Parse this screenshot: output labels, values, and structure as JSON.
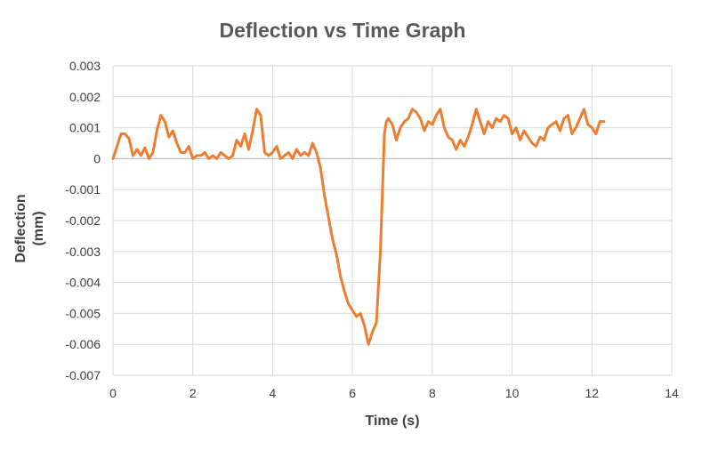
{
  "chart_data": {
    "type": "line",
    "title": "Deflection vs Time Graph",
    "xlabel": "Time (s)",
    "ylabel": "Deflection (mm)",
    "ylabel_lines": [
      "Deflection",
      "(mm)"
    ],
    "xlim": [
      0,
      14
    ],
    "ylim": [
      -0.007,
      0.003
    ],
    "x_ticks": [
      "0",
      "2",
      "4",
      "6",
      "8",
      "10",
      "12",
      "14"
    ],
    "y_ticks": [
      "0.003",
      "0.002",
      "0.001",
      "0",
      "-0.001",
      "-0.002",
      "-0.003",
      "-0.004",
      "-0.005",
      "-0.006",
      "-0.007"
    ],
    "grid": true,
    "legend": "none",
    "series": [
      {
        "color": "#ED7D31",
        "x": [
          0.0,
          0.1,
          0.2,
          0.3,
          0.4,
          0.5,
          0.6,
          0.7,
          0.8,
          0.9,
          1.0,
          1.1,
          1.2,
          1.3,
          1.4,
          1.5,
          1.6,
          1.7,
          1.8,
          1.9,
          2.0,
          2.1,
          2.2,
          2.3,
          2.4,
          2.5,
          2.6,
          2.7,
          2.8,
          2.9,
          3.0,
          3.1,
          3.2,
          3.3,
          3.4,
          3.5,
          3.6,
          3.7,
          3.8,
          3.9,
          4.0,
          4.1,
          4.2,
          4.3,
          4.4,
          4.5,
          4.6,
          4.7,
          4.8,
          4.9,
          5.0,
          5.1,
          5.2,
          5.3,
          5.4,
          5.5,
          5.6,
          5.7,
          5.8,
          5.9,
          6.0,
          6.1,
          6.2,
          6.3,
          6.4,
          6.5,
          6.6,
          6.7,
          6.8,
          6.85,
          6.9,
          7.0,
          7.1,
          7.2,
          7.3,
          7.4,
          7.5,
          7.6,
          7.7,
          7.8,
          7.9,
          8.0,
          8.1,
          8.2,
          8.3,
          8.4,
          8.5,
          8.6,
          8.7,
          8.8,
          8.9,
          9.0,
          9.1,
          9.2,
          9.3,
          9.4,
          9.5,
          9.6,
          9.7,
          9.8,
          9.9,
          10.0,
          10.1,
          10.2,
          10.3,
          10.4,
          10.5,
          10.6,
          10.7,
          10.8,
          10.9,
          11.0,
          11.1,
          11.2,
          11.3,
          11.4,
          11.5,
          11.6,
          11.7,
          11.8,
          11.9,
          12.0,
          12.1,
          12.2,
          12.3
        ],
        "y": [
          0.0,
          0.0004,
          0.0008,
          0.0008,
          0.00065,
          0.0001,
          0.0003,
          0.0001,
          0.00035,
          0.0,
          0.0002,
          0.0009,
          0.0014,
          0.0012,
          0.0007,
          0.0009,
          0.0005,
          0.0002,
          0.0002,
          0.0004,
          0.0,
          0.0001,
          0.0001,
          0.0002,
          0.0,
          0.0001,
          0.0,
          0.0002,
          0.0001,
          0.0,
          0.0001,
          0.0006,
          0.0004,
          0.0008,
          0.0003,
          0.0009,
          0.0016,
          0.0014,
          0.0002,
          0.0001,
          0.0002,
          0.0004,
          0.0,
          0.0001,
          0.0002,
          0.0,
          0.0003,
          0.0001,
          0.0002,
          0.0001,
          0.0005,
          0.0002,
          -0.0003,
          -0.0012,
          -0.0019,
          -0.0026,
          -0.0031,
          -0.0038,
          -0.0043,
          -0.0047,
          -0.0049,
          -0.0051,
          -0.005,
          -0.0054,
          -0.006,
          -0.0056,
          -0.0053,
          -0.003,
          0.0008,
          0.0012,
          0.0013,
          0.0011,
          0.0006,
          0.001,
          0.0012,
          0.0013,
          0.0016,
          0.0015,
          0.0013,
          0.0009,
          0.0012,
          0.0011,
          0.0014,
          0.0016,
          0.001,
          0.0007,
          0.0006,
          0.0003,
          0.0006,
          0.0004,
          0.0007,
          0.0011,
          0.0016,
          0.0012,
          0.0008,
          0.0012,
          0.001,
          0.0013,
          0.0012,
          0.0014,
          0.0013,
          0.0008,
          0.001,
          0.0006,
          0.0009,
          0.0007,
          0.0005,
          0.0004,
          0.0007,
          0.0006,
          0.001,
          0.0011,
          0.0012,
          0.0009,
          0.0013,
          0.0014,
          0.0008,
          0.001,
          0.0013,
          0.0016,
          0.0011,
          0.001,
          0.0008,
          0.0012,
          0.0012
        ]
      }
    ]
  }
}
